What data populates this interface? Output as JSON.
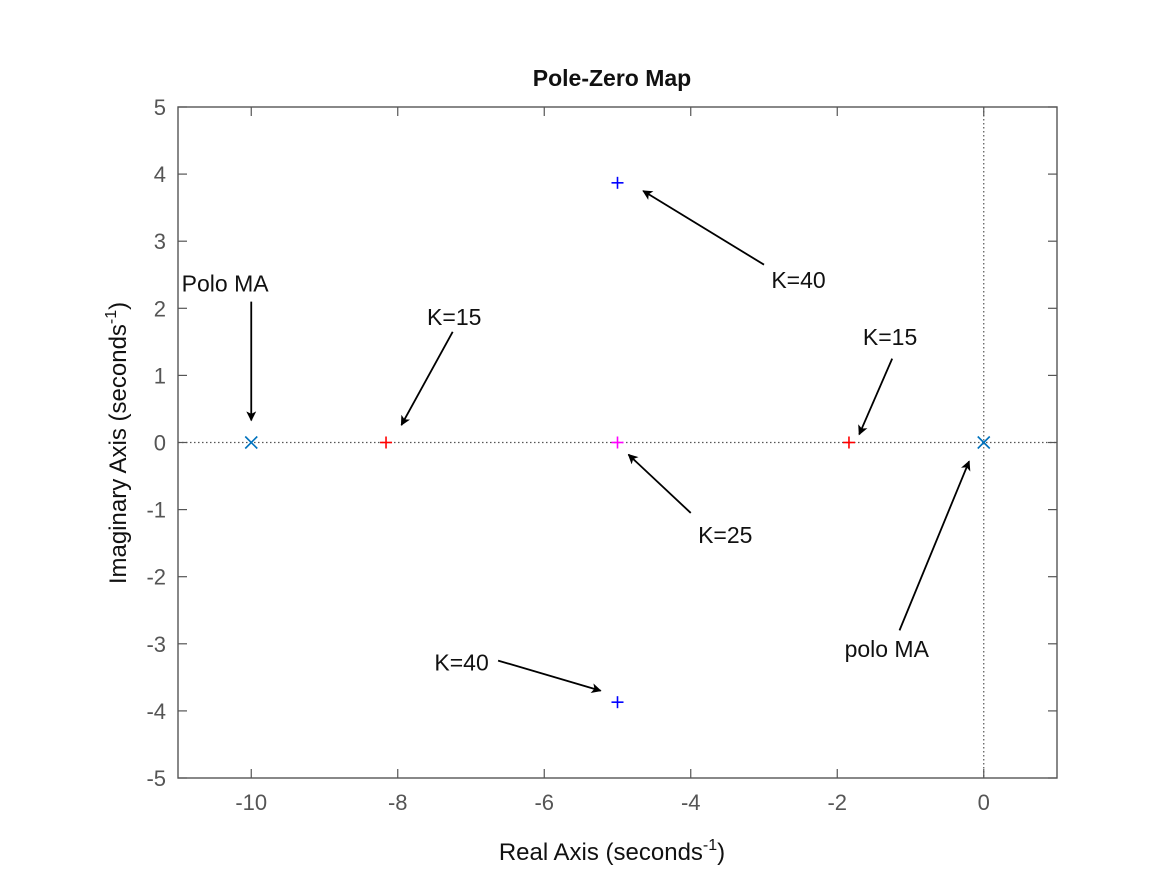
{
  "chart_data": {
    "type": "scatter",
    "title": "Pole-Zero Map",
    "xlabel": "Real Axis (seconds",
    "ylabel": "Imaginary Axis (seconds",
    "unit_exponent": "-1",
    "unit_close": ")",
    "xlim": [
      -11,
      1
    ],
    "ylim": [
      -5,
      5
    ],
    "xticks": [
      -10,
      -8,
      -6,
      -4,
      -2,
      0
    ],
    "yticks": [
      -5,
      -4,
      -3,
      -2,
      -1,
      0,
      1,
      2,
      3,
      4,
      5
    ],
    "grid": false,
    "colors": {
      "open_loop_poles": "#0072BD",
      "k15": "#FF0000",
      "k25": "#FF00FF",
      "k40": "#0000FF",
      "axes": "#555555",
      "reference_lines": "#555555",
      "arrows": "#000000"
    },
    "series": [
      {
        "marker": "x",
        "color_key": "open_loop_poles",
        "points": [
          {
            "x": -10,
            "y": 0
          },
          {
            "x": 0,
            "y": 0
          }
        ]
      },
      {
        "marker": "+",
        "color_key": "k15",
        "points": [
          {
            "x": -8.16,
            "y": 0
          },
          {
            "x": -1.84,
            "y": 0
          }
        ]
      },
      {
        "marker": "+",
        "color_key": "k25",
        "points": [
          {
            "x": -5,
            "y": 0
          }
        ]
      },
      {
        "marker": "+",
        "color_key": "k40",
        "points": [
          {
            "x": -5,
            "y": 3.87
          },
          {
            "x": -5,
            "y": -3.87
          }
        ]
      }
    ],
    "annotations": [
      {
        "text": "Polo MA",
        "tx": -10.95,
        "ty": 2.25,
        "anchor": "start",
        "arrow": {
          "x1": -10.0,
          "y1": 2.1,
          "x2": -10.0,
          "y2": 0.33
        }
      },
      {
        "text": "K=15",
        "tx": -7.6,
        "ty": 1.75,
        "anchor": "start",
        "arrow": {
          "x1": -7.25,
          "y1": 1.65,
          "x2": -7.95,
          "y2": 0.26
        }
      },
      {
        "text": "K=40",
        "tx": -2.9,
        "ty": 2.3,
        "anchor": "start",
        "arrow": {
          "x1": -3.0,
          "y1": 2.65,
          "x2": -4.65,
          "y2": 3.75
        }
      },
      {
        "text": "K=15",
        "tx": -1.65,
        "ty": 1.45,
        "anchor": "start",
        "arrow": {
          "x1": -1.25,
          "y1": 1.25,
          "x2": -1.7,
          "y2": 0.12
        }
      },
      {
        "text": "K=25",
        "tx": -3.9,
        "ty": -1.5,
        "anchor": "start",
        "arrow": {
          "x1": -4.0,
          "y1": -1.05,
          "x2": -4.85,
          "y2": -0.18
        }
      },
      {
        "text": "polo MA",
        "tx": -1.9,
        "ty": -3.2,
        "anchor": "start",
        "arrow": {
          "x1": -1.15,
          "y1": -2.8,
          "x2": -0.2,
          "y2": -0.28
        }
      },
      {
        "text": "K=40",
        "tx": -7.5,
        "ty": -3.4,
        "anchor": "start",
        "arrow": {
          "x1": -6.63,
          "y1": -3.25,
          "x2": -5.23,
          "y2": -3.7
        }
      }
    ]
  }
}
